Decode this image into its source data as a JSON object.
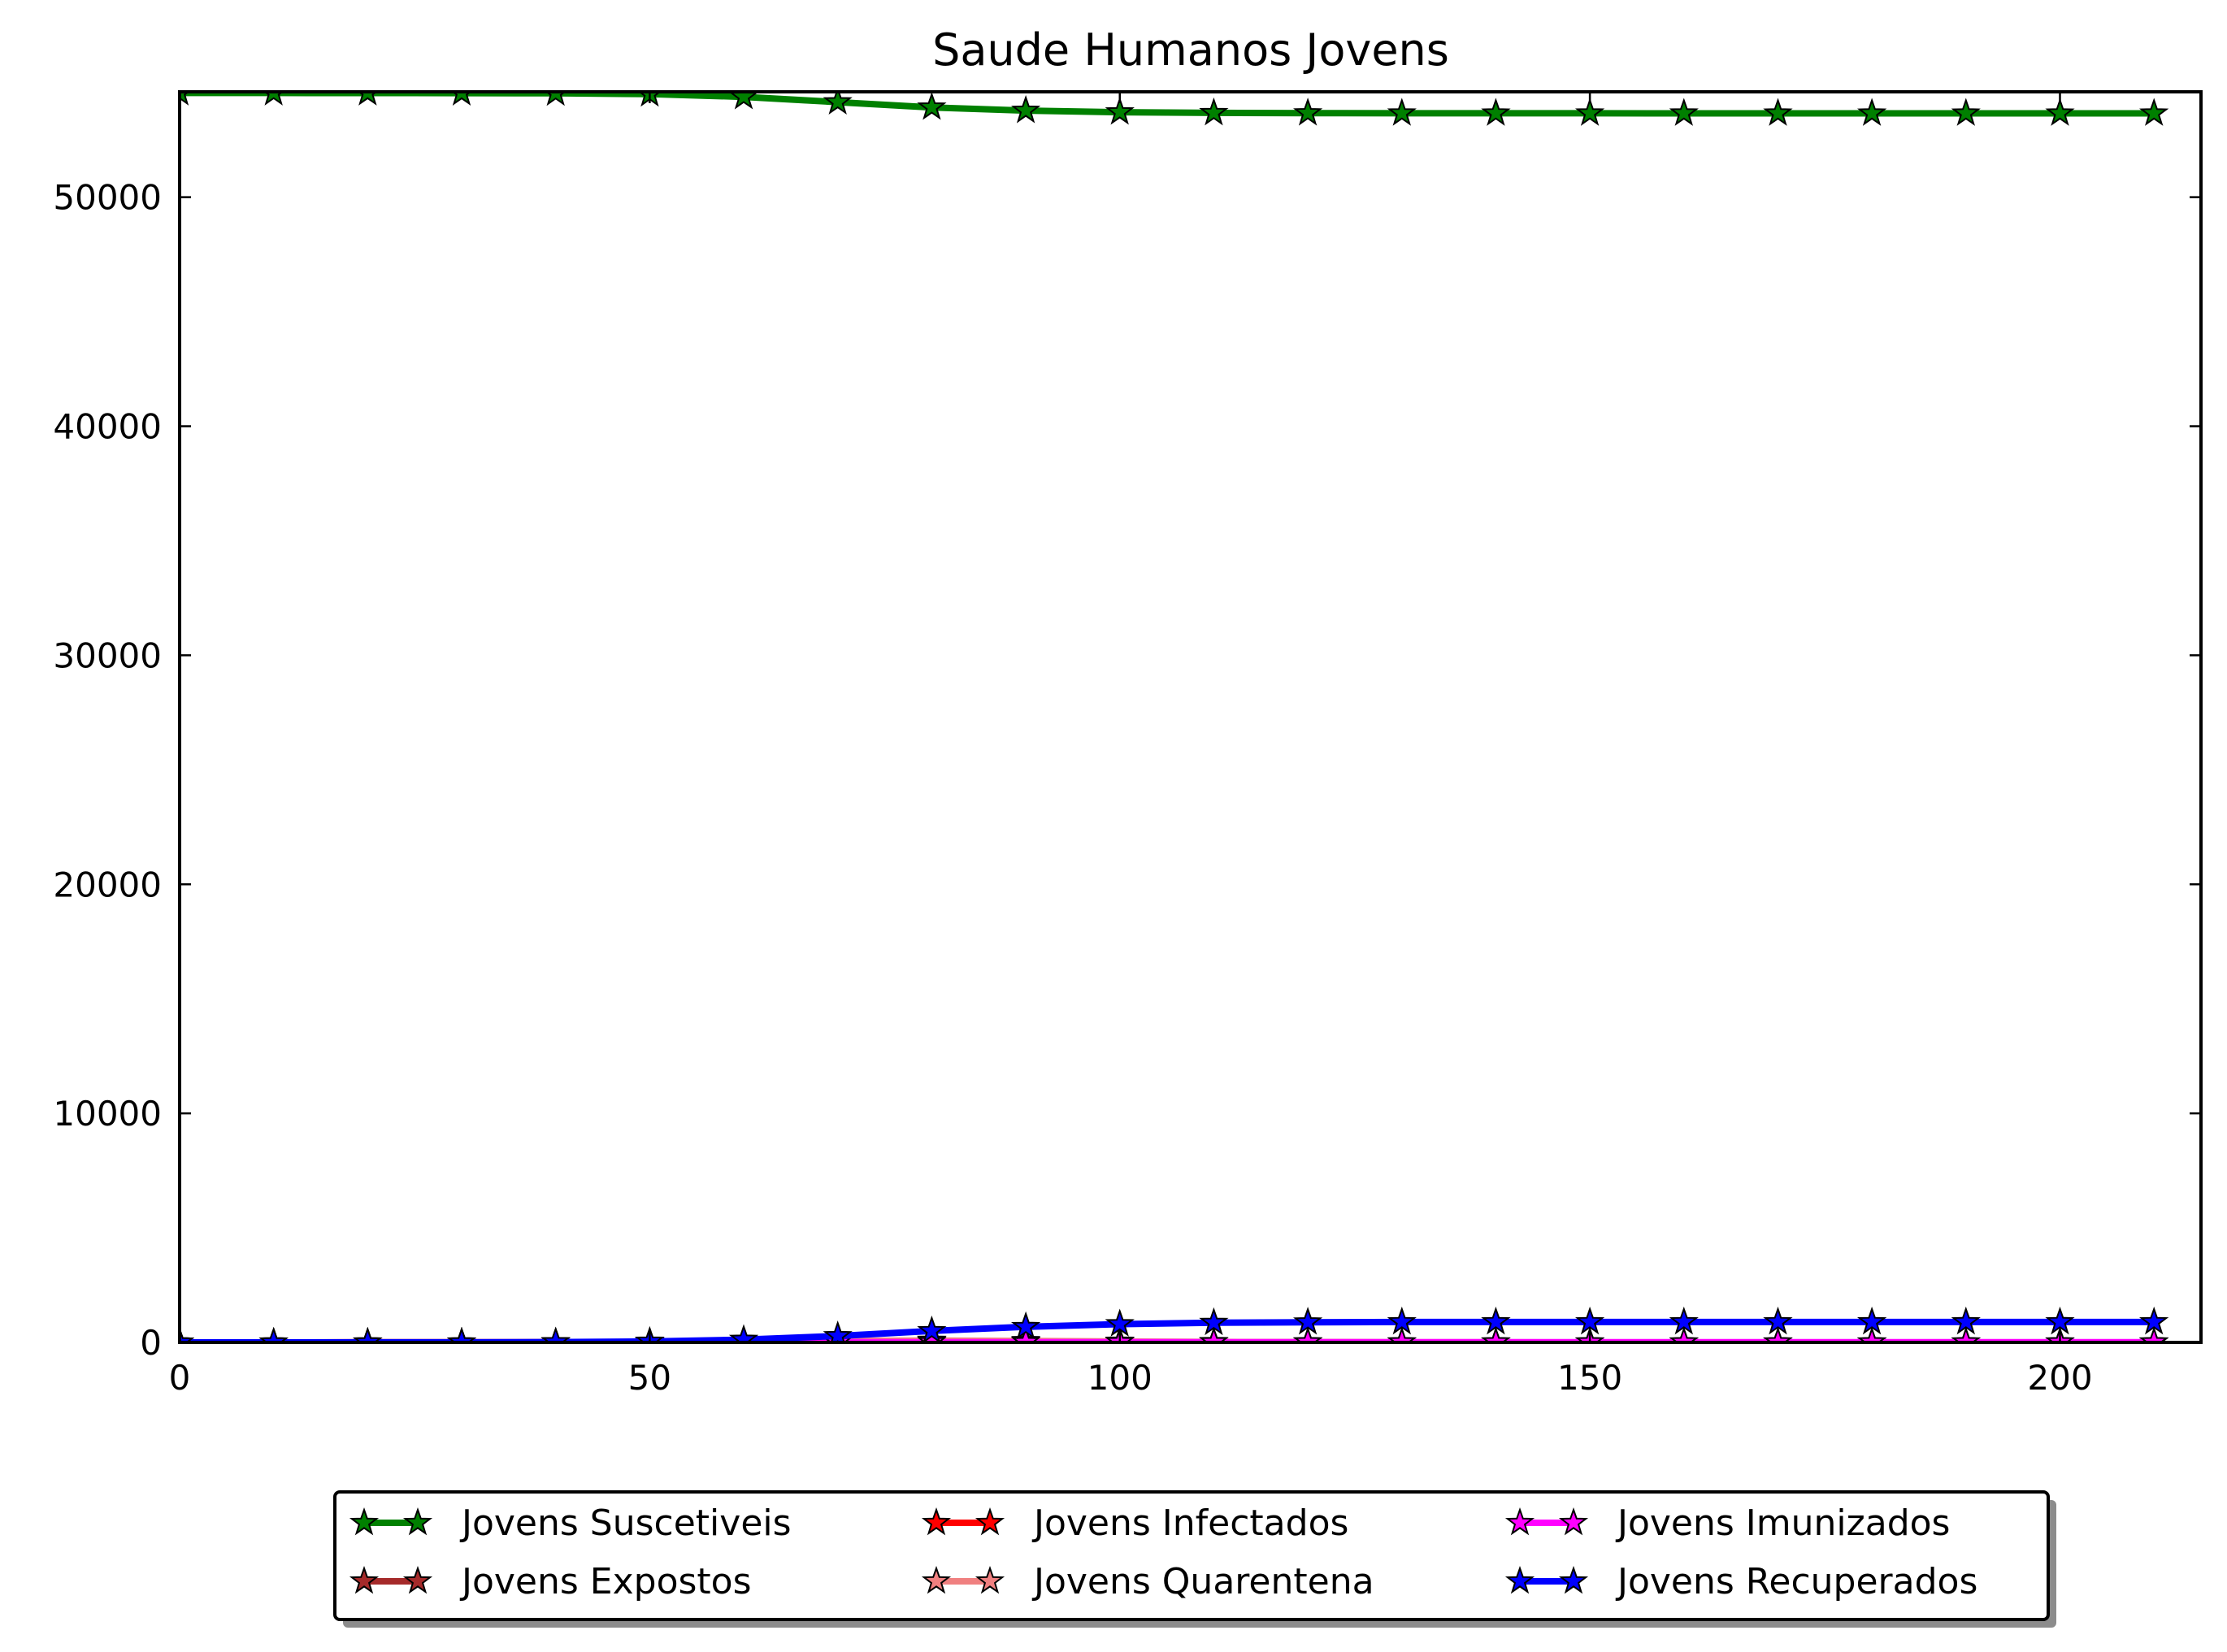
{
  "chart_data": {
    "type": "line",
    "title": "Saude Humanos Jovens",
    "xlabel": "",
    "ylabel": "",
    "xlim": [
      0,
      215
    ],
    "ylim": [
      0,
      54600
    ],
    "x_ticks": [
      0,
      50,
      100,
      150,
      200
    ],
    "y_ticks": [
      0,
      10000,
      20000,
      30000,
      40000,
      50000
    ],
    "grid": false,
    "legend_position": "bottom-center, 3 columns",
    "marker": "star",
    "x": [
      0,
      10,
      20,
      30,
      40,
      50,
      60,
      70,
      80,
      90,
      100,
      110,
      120,
      130,
      140,
      150,
      160,
      170,
      180,
      190,
      200,
      210
    ],
    "series": [
      {
        "name": "Jovens Suscetiveis",
        "color": "#008000",
        "values": [
          54550,
          54550,
          54548,
          54545,
          54535,
          54500,
          54380,
          54150,
          53920,
          53780,
          53710,
          53680,
          53670,
          53665,
          53663,
          53662,
          53661,
          53660,
          53660,
          53660,
          53660,
          53660
        ]
      },
      {
        "name": "Jovens Expostos",
        "color": "#a52a2a",
        "values": [
          0,
          1,
          2,
          3,
          6,
          12,
          20,
          30,
          28,
          18,
          9,
          4,
          2,
          1,
          0,
          0,
          0,
          0,
          0,
          0,
          0,
          0
        ]
      },
      {
        "name": "Jovens Infectados",
        "color": "#ff0000",
        "values": [
          0,
          1,
          2,
          4,
          8,
          18,
          35,
          55,
          50,
          32,
          15,
          7,
          3,
          1,
          1,
          0,
          0,
          0,
          0,
          0,
          0,
          0
        ]
      },
      {
        "name": "Jovens Quarentena",
        "color": "#f08080",
        "values": [
          0,
          0,
          1,
          2,
          5,
          12,
          30,
          60,
          80,
          65,
          40,
          20,
          10,
          5,
          2,
          1,
          0,
          0,
          0,
          0,
          0,
          0
        ]
      },
      {
        "name": "Jovens Imunizados",
        "color": "#ff00ff",
        "values": [
          0,
          0,
          0,
          0,
          1,
          2,
          5,
          8,
          10,
          10,
          10,
          10,
          10,
          10,
          10,
          10,
          10,
          10,
          10,
          10,
          10,
          10
        ]
      },
      {
        "name": "Jovens Recuperados",
        "color": "#0000ff",
        "values": [
          0,
          0,
          2,
          5,
          15,
          40,
          120,
          280,
          500,
          680,
          800,
          860,
          880,
          890,
          890,
          890,
          890,
          890,
          890,
          890,
          890,
          890
        ]
      }
    ]
  }
}
